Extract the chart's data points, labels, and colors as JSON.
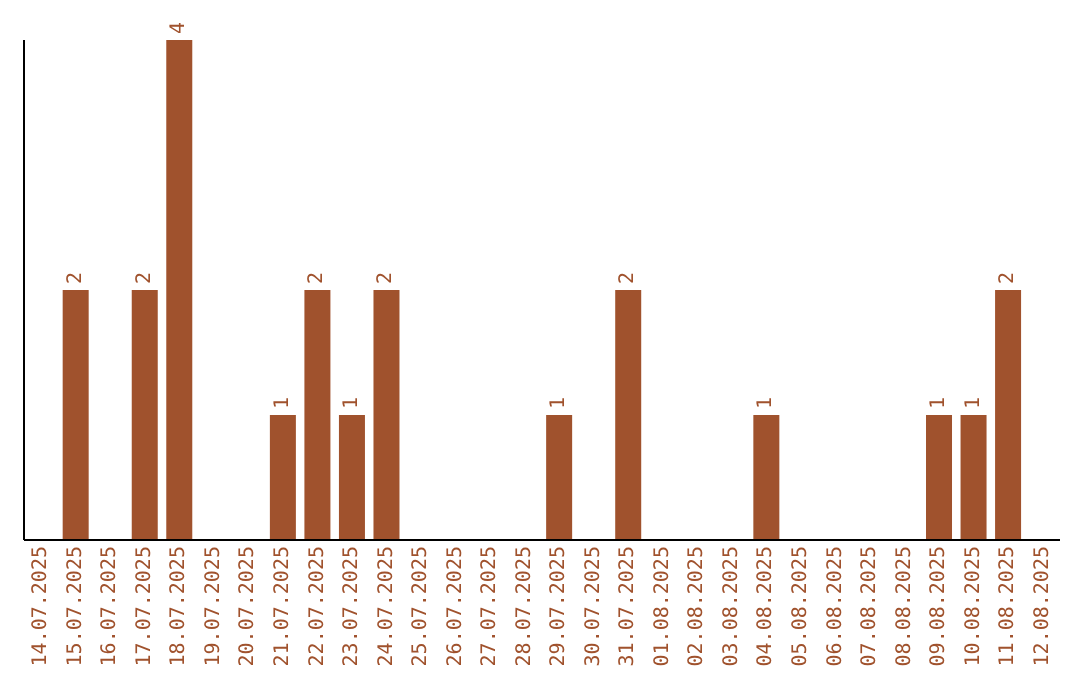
{
  "chart_data": {
    "type": "bar",
    "categories": [
      "14.07.2025",
      "15.07.2025",
      "16.07.2025",
      "17.07.2025",
      "18.07.2025",
      "19.07.2025",
      "20.07.2025",
      "21.07.2025",
      "22.07.2025",
      "23.07.2025",
      "24.07.2025",
      "25.07.2025",
      "26.07.2025",
      "27.07.2025",
      "28.07.2025",
      "29.07.2025",
      "30.07.2025",
      "31.07.2025",
      "01.08.2025",
      "02.08.2025",
      "03.08.2025",
      "04.08.2025",
      "05.08.2025",
      "06.08.2025",
      "07.08.2025",
      "08.08.2025",
      "09.08.2025",
      "10.08.2025",
      "11.08.2025",
      "12.08.2025"
    ],
    "values": [
      0,
      2,
      0,
      2,
      4,
      0,
      0,
      1,
      2,
      1,
      2,
      0,
      0,
      0,
      0,
      1,
      0,
      2,
      0,
      0,
      0,
      1,
      0,
      0,
      0,
      0,
      1,
      1,
      2,
      0
    ],
    "value_labels": [
      null,
      "2",
      null,
      "2",
      "4",
      null,
      null,
      "1",
      "2",
      "1",
      "2",
      null,
      null,
      null,
      null,
      "1",
      null,
      "2",
      null,
      null,
      null,
      "1",
      null,
      null,
      null,
      null,
      "1",
      "1",
      "2",
      null
    ],
    "color": "#a0522d",
    "tick_labels": "x"
  }
}
